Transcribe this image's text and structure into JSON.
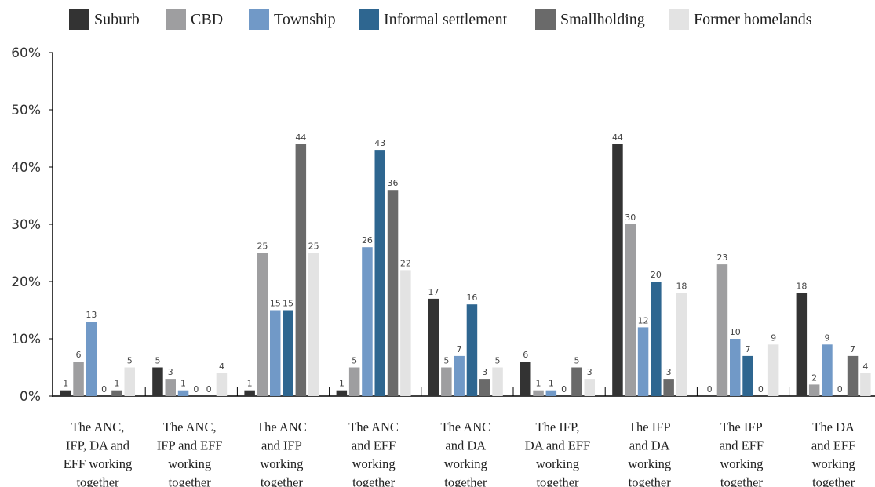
{
  "chart_data": {
    "type": "bar",
    "title": "",
    "xlabel": "",
    "ylabel": "",
    "ylim": [
      0,
      60
    ],
    "ytick_labels": [
      "0%",
      "10%",
      "20%",
      "30%",
      "40%",
      "50%",
      "60%"
    ],
    "grid": false,
    "legend_position": "top",
    "categories": [
      [
        "The ANC,",
        "IFP, DA and",
        "EFF working",
        "together"
      ],
      [
        "The ANC,",
        "IFP and EFF",
        "working",
        "together"
      ],
      [
        "The ANC",
        "and IFP",
        "working",
        "together"
      ],
      [
        "The ANC",
        "and EFF",
        "working",
        "together"
      ],
      [
        "The ANC",
        "and DA",
        "working",
        "together"
      ],
      [
        "The IFP,",
        "DA and EFF",
        "working",
        "together"
      ],
      [
        "The IFP",
        "and DA",
        "working",
        "together"
      ],
      [
        "The IFP",
        "and EFF",
        "working",
        "together"
      ],
      [
        "The DA",
        "and EFF",
        "working",
        "together"
      ]
    ],
    "series": [
      {
        "name": "Suburb",
        "color": "#333333",
        "values": [
          1,
          5,
          1,
          1,
          17,
          6,
          44,
          0,
          18
        ]
      },
      {
        "name": "CBD",
        "color": "#9e9ea0",
        "values": [
          6,
          3,
          25,
          5,
          5,
          1,
          30,
          23,
          2
        ]
      },
      {
        "name": "Township",
        "color": "#7199c7",
        "values": [
          13,
          1,
          15,
          26,
          7,
          1,
          12,
          10,
          9
        ]
      },
      {
        "name": "Informal settlement",
        "color": "#2e6690",
        "values": [
          0,
          0,
          15,
          43,
          16,
          0,
          20,
          7,
          0
        ]
      },
      {
        "name": "Smallholding",
        "color": "#6a6a6a",
        "values": [
          1,
          0,
          44,
          36,
          3,
          5,
          3,
          0,
          7
        ]
      },
      {
        "name": "Former homelands",
        "color": "#e3e3e3",
        "values": [
          5,
          4,
          25,
          22,
          5,
          3,
          18,
          9,
          4
        ]
      }
    ]
  }
}
